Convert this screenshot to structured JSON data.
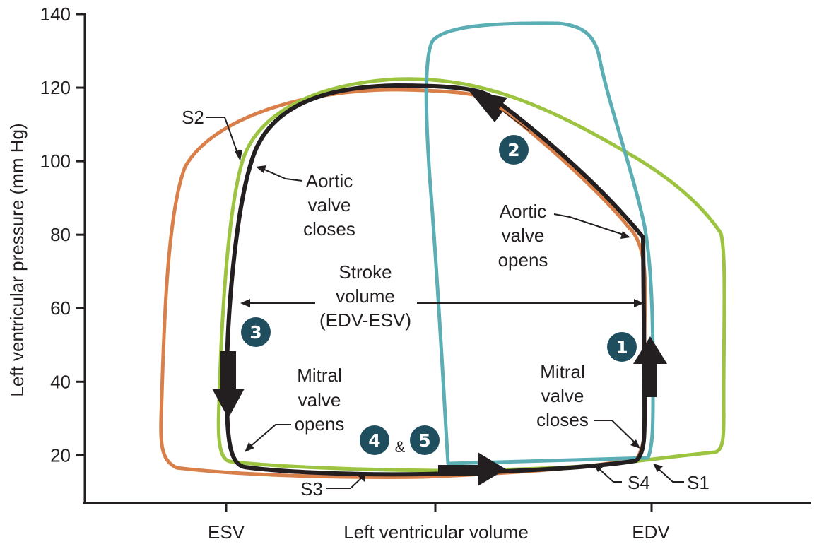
{
  "chart_data": {
    "type": "line",
    "xlabel": "Left ventricular volume",
    "ylabel": "Left ventricular pressure  (mm Hg)",
    "ylim": [
      7,
      140
    ],
    "yticks": [
      20,
      40,
      60,
      80,
      100,
      120,
      140
    ],
    "xticks": [
      "ESV",
      "EDV"
    ],
    "grid": false,
    "colors": {
      "normal": "#231f20",
      "orange": "#d9804a",
      "green": "#9cc441",
      "teal": "#5aaeb4",
      "badge": "#1f4e5f"
    },
    "annotations": {
      "s1": "S1",
      "s2": "S2",
      "s3": "S3",
      "s4": "S4",
      "aortic_closes": [
        "Aortic",
        "valve",
        "closes"
      ],
      "aortic_opens": [
        "Aortic",
        "valve",
        "opens"
      ],
      "stroke_volume": [
        "Stroke",
        "volume",
        "(EDV-ESV)"
      ],
      "mitral_opens": [
        "Mitral",
        "valve",
        "opens"
      ],
      "mitral_closes": [
        "Mitral",
        "valve",
        "closes"
      ],
      "ampersand": "&"
    },
    "phases": [
      {
        "id": "1",
        "label": "1"
      },
      {
        "id": "2",
        "label": "2"
      },
      {
        "id": "3",
        "label": "3"
      },
      {
        "id": "4",
        "label": "4"
      },
      {
        "id": "5",
        "label": "5"
      }
    ]
  }
}
